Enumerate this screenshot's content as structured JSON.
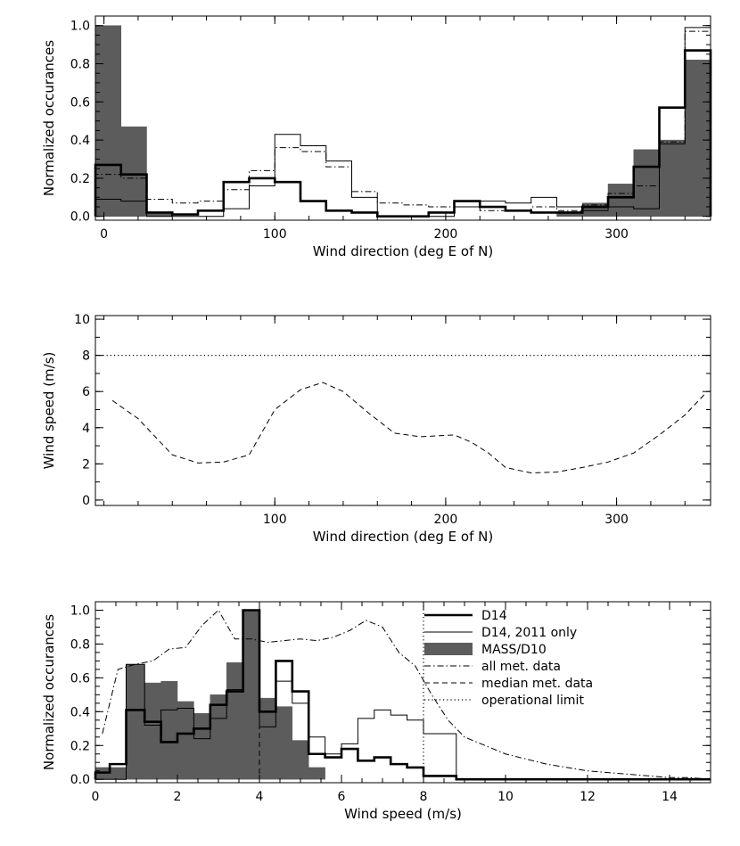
{
  "colors": {
    "fill": "#5c5c5c",
    "line": "#000000",
    "background": "#ffffff"
  },
  "chart_data": [
    {
      "type": "histogram",
      "id": "direction-histogram",
      "title": "",
      "xlabel": "Wind direction (deg E of N)",
      "ylabel": "Normalized occurances",
      "xlim": [
        -5,
        355
      ],
      "ylim": [
        -0.02,
        1.05
      ],
      "xticks": [
        0,
        100,
        200,
        300
      ],
      "yticks": [
        0.0,
        0.2,
        0.4,
        0.6,
        0.8,
        1.0
      ],
      "ytick_labels": [
        "0.0",
        "0.2",
        "0.4",
        "0.6",
        "0.8",
        "1.0"
      ],
      "bin_edges": [
        -5,
        10,
        25,
        40,
        55,
        70,
        85,
        100,
        115,
        130,
        145,
        160,
        175,
        190,
        205,
        220,
        235,
        250,
        265,
        280,
        295,
        310,
        325,
        340,
        355
      ],
      "series": [
        {
          "name": "MASS/D10",
          "style": "filled",
          "values": [
            1.0,
            0.47,
            0.02,
            0.0,
            0.0,
            0.0,
            0.0,
            0.0,
            0.0,
            0.0,
            0.0,
            0.0,
            0.0,
            0.0,
            0.0,
            0.0,
            0.0,
            0.0,
            0.02,
            0.07,
            0.17,
            0.35,
            0.4,
            0.82
          ]
        },
        {
          "name": "D14",
          "style": "thick",
          "values": [
            0.27,
            0.22,
            0.02,
            0.01,
            0.03,
            0.18,
            0.2,
            0.18,
            0.08,
            0.03,
            0.02,
            0.0,
            0.0,
            0.02,
            0.08,
            0.05,
            0.03,
            0.02,
            0.02,
            0.05,
            0.1,
            0.26,
            0.57,
            0.87
          ]
        },
        {
          "name": "D14, 2011 only",
          "style": "thin",
          "values": [
            0.09,
            0.08,
            0.0,
            0.0,
            0.0,
            0.04,
            0.16,
            0.43,
            0.37,
            0.29,
            0.1,
            0.0,
            0.0,
            0.0,
            0.05,
            0.08,
            0.07,
            0.1,
            0.05,
            0.03,
            0.05,
            0.04,
            0.38,
            0.99
          ]
        },
        {
          "name": "all met. data",
          "style": "dashdot",
          "values": [
            0.22,
            0.2,
            0.09,
            0.07,
            0.08,
            0.14,
            0.24,
            0.36,
            0.34,
            0.26,
            0.13,
            0.07,
            0.06,
            0.05,
            0.05,
            0.03,
            0.03,
            0.05,
            0.03,
            0.06,
            0.12,
            0.16,
            0.39,
            0.97
          ]
        }
      ]
    },
    {
      "type": "line",
      "id": "median-speed",
      "title": "",
      "xlabel": "Wind direction (deg E of N)",
      "ylabel": "Wind speed (m/s)",
      "xlim": [
        -5,
        355
      ],
      "ylim": [
        -0.3,
        10.2
      ],
      "xticks": [
        100,
        200,
        300
      ],
      "yticks": [
        0,
        2,
        4,
        6,
        8,
        10
      ],
      "ytick_labels": [
        "0",
        "2",
        "4",
        "6",
        "8",
        "10"
      ],
      "series": [
        {
          "name": "median met. data",
          "style": "dashed",
          "x": [
            5,
            20,
            40,
            55,
            70,
            85,
            100,
            115,
            128,
            140,
            155,
            170,
            185,
            205,
            215,
            225,
            235,
            250,
            265,
            280,
            295,
            310,
            325,
            340,
            352
          ],
          "y": [
            5.5,
            4.5,
            2.5,
            2.05,
            2.1,
            2.5,
            5.0,
            6.1,
            6.5,
            6.0,
            4.8,
            3.7,
            3.5,
            3.6,
            3.2,
            2.6,
            1.8,
            1.5,
            1.55,
            1.8,
            2.1,
            2.6,
            3.6,
            4.7,
            5.9
          ]
        },
        {
          "name": "operational limit",
          "style": "dotted",
          "x": [
            -5,
            355
          ],
          "y": [
            8,
            8
          ]
        }
      ]
    },
    {
      "type": "histogram",
      "id": "speed-histogram",
      "title": "",
      "xlabel": "Wind speed (m/s)",
      "ylabel": "Normalized occurances",
      "xlim": [
        0,
        15
      ],
      "ylim": [
        -0.02,
        1.05
      ],
      "xticks": [
        0,
        2,
        4,
        6,
        8,
        10,
        12,
        14
      ],
      "yticks": [
        0.0,
        0.2,
        0.4,
        0.6,
        0.8,
        1.0
      ],
      "ytick_labels": [
        "0.0",
        "0.2",
        "0.4",
        "0.6",
        "0.8",
        "1.0"
      ],
      "bin_edges": [
        0,
        0.35,
        0.75,
        1.2,
        1.6,
        2.0,
        2.4,
        2.8,
        3.2,
        3.6,
        4.0,
        4.4,
        4.8,
        5.2,
        5.6,
        6.0,
        6.4,
        6.8,
        7.2,
        7.6,
        8.0,
        8.4,
        8.8,
        15
      ],
      "series": [
        {
          "name": "MASS/D10",
          "style": "filled",
          "values": [
            0.07,
            0.07,
            0.68,
            0.57,
            0.58,
            0.46,
            0.39,
            0.5,
            0.69,
            1.0,
            0.48,
            0.43,
            0.23,
            0.07,
            0.0,
            0.0,
            0.0,
            0.0,
            0.0,
            0.0,
            0.0,
            0.0,
            0.0
          ]
        },
        {
          "name": "D14",
          "style": "thick",
          "values": [
            0.04,
            0.09,
            0.41,
            0.34,
            0.22,
            0.27,
            0.3,
            0.44,
            0.52,
            1.0,
            0.4,
            0.7,
            0.52,
            0.15,
            0.13,
            0.18,
            0.11,
            0.13,
            0.09,
            0.07,
            0.02,
            0.02,
            0.0
          ]
        },
        {
          "name": "D14, 2011 only",
          "style": "thin",
          "values": [
            0.0,
            0.0,
            0.68,
            0.32,
            0.41,
            0.42,
            0.24,
            0.36,
            0.53,
            1.0,
            0.31,
            0.58,
            0.45,
            0.25,
            0.15,
            0.21,
            0.36,
            0.41,
            0.38,
            0.35,
            0.27,
            0.27,
            0.0
          ]
        }
      ],
      "lines": [
        {
          "name": "all met. data",
          "style": "dashdot",
          "x": [
            0.17,
            0.55,
            0.97,
            1.4,
            1.8,
            2.2,
            2.6,
            3.0,
            3.4,
            3.8,
            4.2,
            4.6,
            5.0,
            5.4,
            5.8,
            6.2,
            6.6,
            7.0,
            7.4,
            7.8,
            8.2,
            8.6,
            9.0,
            9.5,
            10.0,
            10.5,
            11.0,
            11.5,
            12.0,
            12.5,
            13.0,
            13.5,
            14.0,
            14.5,
            15.0
          ],
          "y": [
            0.27,
            0.65,
            0.68,
            0.7,
            0.77,
            0.78,
            0.91,
            1.0,
            0.83,
            0.83,
            0.81,
            0.82,
            0.83,
            0.82,
            0.84,
            0.88,
            0.94,
            0.9,
            0.75,
            0.67,
            0.5,
            0.35,
            0.25,
            0.2,
            0.15,
            0.12,
            0.09,
            0.07,
            0.05,
            0.04,
            0.03,
            0.02,
            0.01,
            0.01,
            0.0
          ]
        },
        {
          "name": "median met. data",
          "style": "dashed",
          "x": [
            4.0,
            4.0
          ],
          "y": [
            -0.02,
            1.05
          ]
        },
        {
          "name": "operational limit",
          "style": "dotted",
          "x": [
            8.0,
            8.0
          ],
          "y": [
            -0.02,
            1.05
          ]
        }
      ],
      "legend": {
        "position": "top-right",
        "entries": [
          {
            "label": "D14",
            "style": "thick"
          },
          {
            "label": "D14, 2011 only",
            "style": "thin"
          },
          {
            "label": "MASS/D10",
            "style": "filled"
          },
          {
            "label": "all met. data",
            "style": "dashdot"
          },
          {
            "label": "median met. data",
            "style": "dashed"
          },
          {
            "label": "operational limit",
            "style": "dotted"
          }
        ]
      }
    }
  ]
}
